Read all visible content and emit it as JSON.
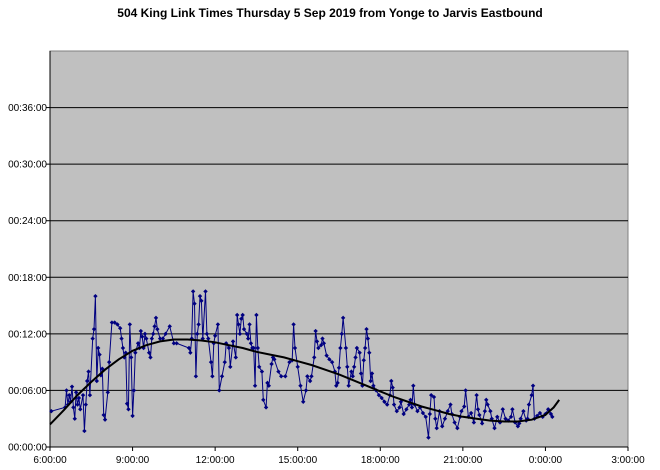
{
  "chart_data": {
    "type": "line",
    "title": "504 King Link Times Thursday 5 Sep 2019 from Yonge to Jarvis Eastbound",
    "xlabel": "",
    "ylabel": "",
    "x_unit": "hours since 6:00",
    "y_unit": "minutes",
    "xlim": [
      0,
      21
    ],
    "ylim": [
      0,
      42
    ],
    "x_ticks": [
      "6:00:00",
      "9:00:00",
      "12:00:00",
      "15:00:00",
      "18:00:00",
      "21:00:00",
      "0:00:00",
      "3:00:00"
    ],
    "y_ticks": [
      "00:00:00",
      "00:06:00",
      "00:12:00",
      "00:18:00",
      "00:24:00",
      "00:30:00",
      "00:36:00"
    ],
    "grid": true,
    "plot_background": "#c0c0c0",
    "series": [
      {
        "name": "",
        "color": "#000080",
        "marker": "diamond",
        "points": [
          [
            0.05,
            3.8
          ],
          [
            0.55,
            4.2
          ],
          [
            0.6,
            6
          ],
          [
            0.65,
            4.5
          ],
          [
            0.7,
            5.5
          ],
          [
            0.75,
            4.8
          ],
          [
            0.8,
            6.4
          ],
          [
            0.85,
            4.2
          ],
          [
            0.9,
            3
          ],
          [
            0.95,
            5.8
          ],
          [
            1.0,
            4.5
          ],
          [
            1.05,
            5.2
          ],
          [
            1.1,
            4
          ],
          [
            1.2,
            5.5
          ],
          [
            1.25,
            1.7
          ],
          [
            1.3,
            4.5
          ],
          [
            1.35,
            7
          ],
          [
            1.4,
            8
          ],
          [
            1.45,
            5.5
          ],
          [
            1.55,
            11.5
          ],
          [
            1.6,
            12.5
          ],
          [
            1.65,
            16
          ],
          [
            1.7,
            7
          ],
          [
            1.75,
            10.5
          ],
          [
            1.8,
            9.8
          ],
          [
            1.85,
            7.6
          ],
          [
            1.9,
            8.3
          ],
          [
            1.95,
            3.4
          ],
          [
            2.0,
            2.9
          ],
          [
            2.1,
            5.8
          ],
          [
            2.15,
            9
          ],
          [
            2.25,
            13.2
          ],
          [
            2.35,
            13.2
          ],
          [
            2.45,
            13
          ],
          [
            2.55,
            12.6
          ],
          [
            2.6,
            11.5
          ],
          [
            2.65,
            10.5
          ],
          [
            2.7,
            9.5
          ],
          [
            2.75,
            10
          ],
          [
            2.8,
            4.6
          ],
          [
            2.85,
            4
          ],
          [
            2.9,
            13
          ],
          [
            2.95,
            9.5
          ],
          [
            3.0,
            3.3
          ],
          [
            3.05,
            6
          ],
          [
            3.1,
            10
          ],
          [
            3.2,
            11
          ],
          [
            3.25,
            10.5
          ],
          [
            3.3,
            12.3
          ],
          [
            3.35,
            11.7
          ],
          [
            3.4,
            10.5
          ],
          [
            3.45,
            12
          ],
          [
            3.5,
            11.5
          ],
          [
            3.6,
            10
          ],
          [
            3.65,
            9.5
          ],
          [
            3.7,
            11.5
          ],
          [
            3.75,
            12
          ],
          [
            3.8,
            12.8
          ],
          [
            3.85,
            13.7
          ],
          [
            3.9,
            12.5
          ],
          [
            4.0,
            11.5
          ],
          [
            4.1,
            11.5
          ],
          [
            4.2,
            12
          ],
          [
            4.35,
            12.8
          ],
          [
            4.5,
            11
          ],
          [
            4.6,
            11
          ],
          [
            5.05,
            10.5
          ],
          [
            5.1,
            10
          ],
          [
            5.15,
            11.5
          ],
          [
            5.2,
            16.5
          ],
          [
            5.25,
            15.2
          ],
          [
            5.3,
            7.5
          ],
          [
            5.35,
            12
          ],
          [
            5.4,
            13
          ],
          [
            5.45,
            16
          ],
          [
            5.5,
            15.5
          ],
          [
            5.55,
            11.5
          ],
          [
            5.65,
            16.5
          ],
          [
            5.7,
            12
          ],
          [
            5.75,
            11.5
          ],
          [
            5.85,
            9
          ],
          [
            5.9,
            7.5
          ],
          [
            5.95,
            11
          ],
          [
            6.0,
            11.8
          ],
          [
            6.1,
            13
          ],
          [
            6.15,
            6
          ],
          [
            6.25,
            7.5
          ],
          [
            6.35,
            9
          ],
          [
            6.4,
            11
          ],
          [
            6.5,
            10.5
          ],
          [
            6.55,
            8.5
          ],
          [
            6.65,
            11.2
          ],
          [
            6.75,
            9.5
          ],
          [
            6.8,
            14
          ],
          [
            6.85,
            13
          ],
          [
            6.9,
            12
          ],
          [
            6.95,
            13.6
          ],
          [
            7.0,
            14
          ],
          [
            7.05,
            12.5
          ],
          [
            7.15,
            12
          ],
          [
            7.2,
            11.5
          ],
          [
            7.25,
            13
          ],
          [
            7.3,
            11
          ],
          [
            7.35,
            10.5
          ],
          [
            7.4,
            10.5
          ],
          [
            7.45,
            6.5
          ],
          [
            7.5,
            14
          ],
          [
            7.55,
            10.5
          ],
          [
            7.6,
            8.5
          ],
          [
            7.7,
            8
          ],
          [
            7.75,
            5
          ],
          [
            7.85,
            4.2
          ],
          [
            7.9,
            6.8
          ],
          [
            7.95,
            6.5
          ],
          [
            8.05,
            8.8
          ],
          [
            8.1,
            9.5
          ],
          [
            8.15,
            9.3
          ],
          [
            8.3,
            8
          ],
          [
            8.4,
            7.5
          ],
          [
            8.55,
            7.5
          ],
          [
            8.7,
            9
          ],
          [
            8.8,
            9.2
          ],
          [
            8.85,
            13
          ],
          [
            8.9,
            10.5
          ],
          [
            9.0,
            8.5
          ],
          [
            9.1,
            6.5
          ],
          [
            9.2,
            4.8
          ],
          [
            9.3,
            6
          ],
          [
            9.35,
            7.5
          ],
          [
            9.45,
            7
          ],
          [
            9.5,
            7.5
          ],
          [
            9.6,
            9.5
          ],
          [
            9.65,
            12.3
          ],
          [
            9.7,
            11.2
          ],
          [
            9.75,
            10.5
          ],
          [
            9.85,
            10.8
          ],
          [
            9.9,
            11.5
          ],
          [
            9.95,
            11
          ],
          [
            10.05,
            9.7
          ],
          [
            10.15,
            9.3
          ],
          [
            10.25,
            9
          ],
          [
            10.35,
            8
          ],
          [
            10.4,
            6.5
          ],
          [
            10.45,
            6.8
          ],
          [
            10.5,
            8.4
          ],
          [
            10.55,
            10.5
          ],
          [
            10.6,
            12
          ],
          [
            10.65,
            13.7
          ],
          [
            10.75,
            10.5
          ],
          [
            10.8,
            8.5
          ],
          [
            10.85,
            6.5
          ],
          [
            10.95,
            8
          ],
          [
            11.0,
            7.5
          ],
          [
            11.05,
            8.5
          ],
          [
            11.1,
            9.5
          ],
          [
            11.15,
            10.5
          ],
          [
            11.25,
            10
          ],
          [
            11.3,
            7.8
          ],
          [
            11.35,
            6.5
          ],
          [
            11.4,
            9.2
          ],
          [
            11.45,
            10.5
          ],
          [
            11.5,
            12.5
          ],
          [
            11.55,
            11.5
          ],
          [
            11.6,
            10
          ],
          [
            11.65,
            7
          ],
          [
            11.7,
            7.8
          ],
          [
            11.75,
            6.5
          ],
          [
            11.85,
            6
          ],
          [
            11.95,
            5.5
          ],
          [
            12.05,
            5.2
          ],
          [
            12.15,
            4.8
          ],
          [
            12.25,
            4.5
          ],
          [
            12.35,
            5.5
          ],
          [
            12.4,
            7
          ],
          [
            12.45,
            6.3
          ],
          [
            12.5,
            4.5
          ],
          [
            12.6,
            3.8
          ],
          [
            12.7,
            4.2
          ],
          [
            12.75,
            4.8
          ],
          [
            12.85,
            3.5
          ],
          [
            12.95,
            4
          ],
          [
            13.05,
            4.5
          ],
          [
            13.1,
            5
          ],
          [
            13.15,
            4.2
          ],
          [
            13.2,
            6.5
          ],
          [
            13.25,
            4.5
          ],
          [
            13.35,
            3.8
          ],
          [
            13.45,
            4.2
          ],
          [
            13.55,
            3.6
          ],
          [
            13.65,
            3.2
          ],
          [
            13.75,
            1
          ],
          [
            13.8,
            3.5
          ],
          [
            13.85,
            5.5
          ],
          [
            13.95,
            5.3
          ],
          [
            14.0,
            3
          ],
          [
            14.05,
            2
          ],
          [
            14.15,
            3.8
          ],
          [
            14.25,
            2.2
          ],
          [
            14.35,
            3
          ],
          [
            14.45,
            3.8
          ],
          [
            14.55,
            4.5
          ],
          [
            14.6,
            3.5
          ],
          [
            14.7,
            2.6
          ],
          [
            14.8,
            2
          ],
          [
            14.9,
            3.2
          ],
          [
            14.95,
            3.8
          ],
          [
            15.05,
            4.3
          ],
          [
            15.1,
            6
          ],
          [
            15.2,
            3.2
          ],
          [
            15.3,
            3.6
          ],
          [
            15.4,
            2.6
          ],
          [
            15.5,
            5.5
          ],
          [
            15.55,
            4
          ],
          [
            15.6,
            3.4
          ],
          [
            15.7,
            2.5
          ],
          [
            15.8,
            3.8
          ],
          [
            15.85,
            5
          ],
          [
            15.9,
            4.5
          ],
          [
            16.0,
            3.8
          ],
          [
            16.05,
            3
          ],
          [
            16.15,
            2
          ],
          [
            16.25,
            3.2
          ],
          [
            16.35,
            2.6
          ],
          [
            16.45,
            4
          ],
          [
            16.55,
            3
          ],
          [
            16.65,
            2.8
          ],
          [
            16.75,
            3.2
          ],
          [
            16.8,
            4
          ],
          [
            16.9,
            2.6
          ],
          [
            17.0,
            2.2
          ],
          [
            17.05,
            2.5
          ],
          [
            17.1,
            3
          ],
          [
            17.2,
            3.8
          ],
          [
            17.3,
            2.8
          ],
          [
            17.35,
            3
          ],
          [
            17.4,
            4.5
          ],
          [
            17.5,
            5.5
          ],
          [
            17.55,
            6.5
          ],
          [
            17.6,
            3
          ],
          [
            17.7,
            3.3
          ],
          [
            17.8,
            3.6
          ],
          [
            17.9,
            3.2
          ],
          [
            18.0,
            3.5
          ],
          [
            18.1,
            4
          ],
          [
            18.2,
            3.5
          ],
          [
            18.25,
            3.2
          ]
        ]
      },
      {
        "name": "",
        "type": "trend",
        "color": "#000000",
        "points": [
          [
            0.0,
            2.4
          ],
          [
            0.5,
            3.9
          ],
          [
            1.0,
            5.5
          ],
          [
            1.5,
            6.9
          ],
          [
            2.0,
            8.2
          ],
          [
            2.5,
            9.3
          ],
          [
            3.0,
            10.2
          ],
          [
            3.5,
            10.8
          ],
          [
            4.0,
            11.2
          ],
          [
            4.5,
            11.4
          ],
          [
            5.0,
            11.4
          ],
          [
            5.5,
            11.3
          ],
          [
            6.0,
            11.1
          ],
          [
            6.5,
            10.8
          ],
          [
            7.0,
            10.5
          ],
          [
            7.5,
            10.1
          ],
          [
            8.0,
            9.8
          ],
          [
            8.5,
            9.5
          ],
          [
            9.0,
            9.1
          ],
          [
            9.5,
            8.7
          ],
          [
            10.0,
            8.2
          ],
          [
            10.5,
            7.7
          ],
          [
            11.0,
            7.1
          ],
          [
            11.5,
            6.5
          ],
          [
            12.0,
            5.9
          ],
          [
            12.5,
            5.3
          ],
          [
            13.0,
            4.8
          ],
          [
            13.5,
            4.3
          ],
          [
            14.0,
            3.9
          ],
          [
            14.5,
            3.5
          ],
          [
            15.0,
            3.2
          ],
          [
            15.5,
            3.0
          ],
          [
            16.0,
            2.8
          ],
          [
            16.5,
            2.7
          ],
          [
            17.0,
            2.7
          ],
          [
            17.5,
            2.9
          ],
          [
            18.0,
            3.4
          ],
          [
            18.3,
            4.2
          ],
          [
            18.5,
            5.0
          ]
        ]
      }
    ]
  }
}
